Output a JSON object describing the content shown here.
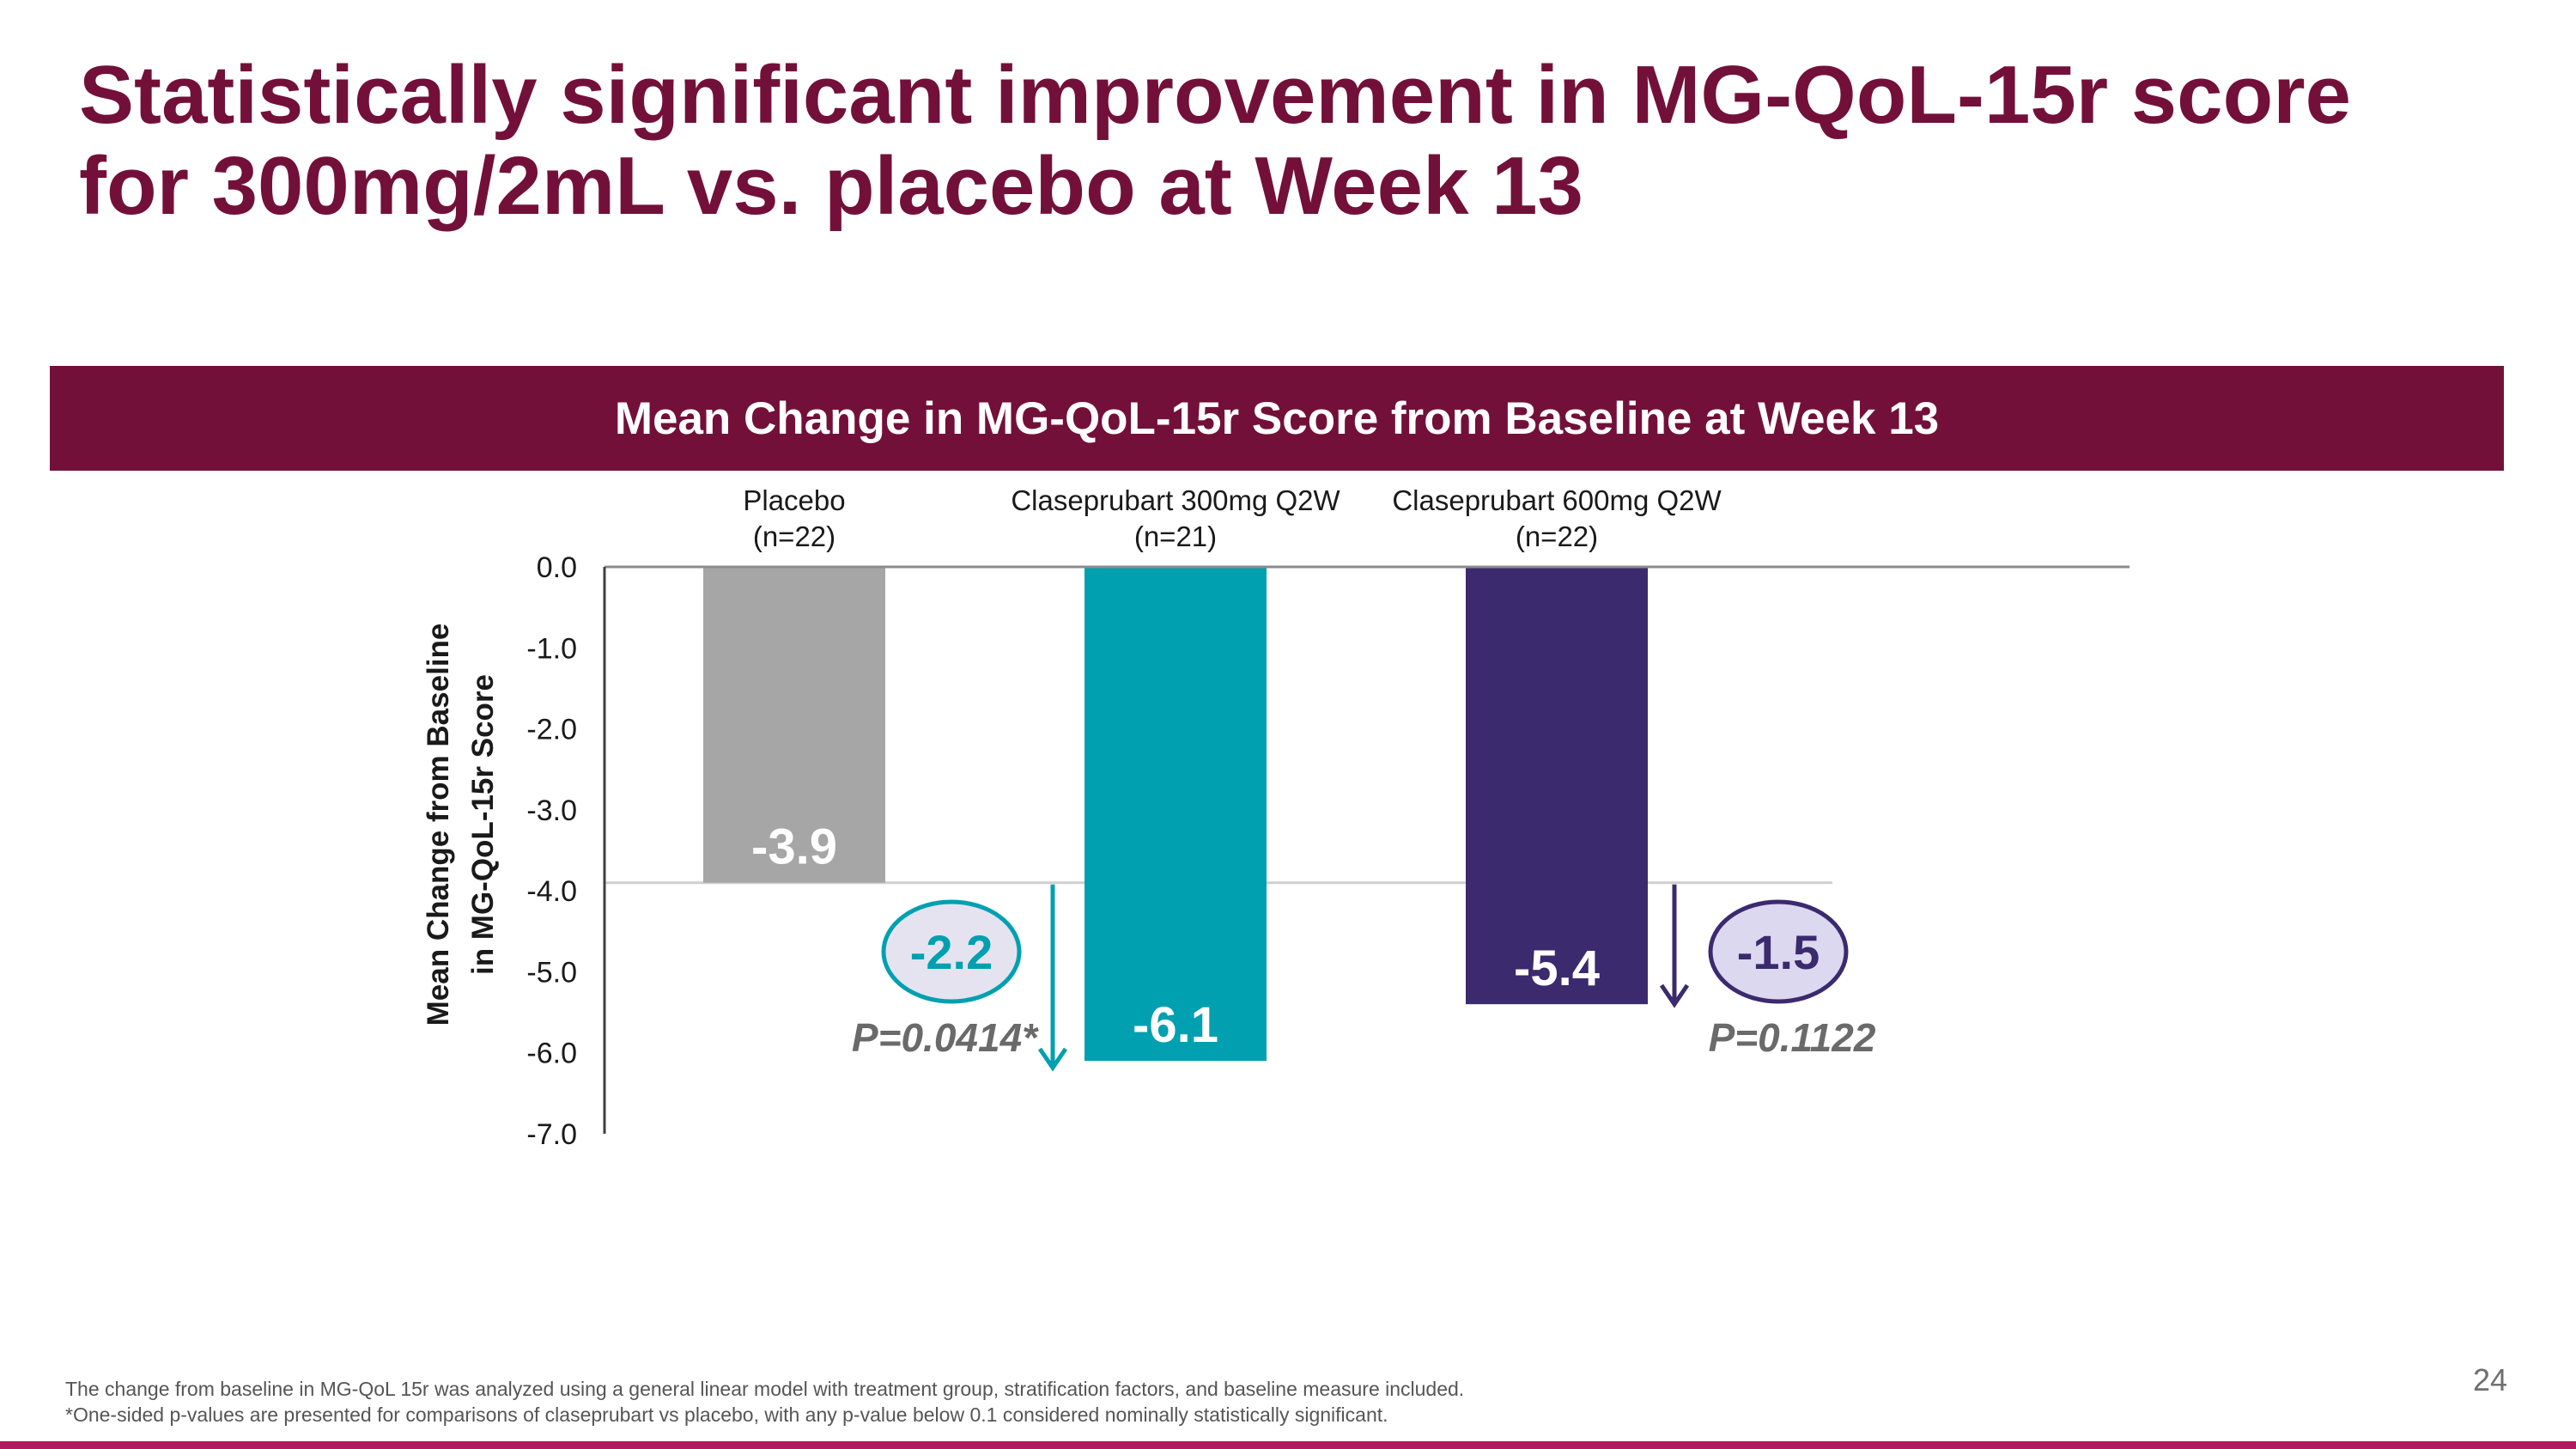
{
  "slide": {
    "title_lines": [
      "Statistically significant improvement in MG-QoL-15r score",
      "for 300mg/2mL vs. placebo at Week 13"
    ],
    "banner": "Mean Change in MG-QoL-15r Score from Baseline at Week 13",
    "footnotes": [
      "The change from baseline in MG-QoL 15r was analyzed using a general linear model with treatment group, stratification factors, and baseline measure included.",
      "*One-sided p-values are presented for comparisons of claseprubart vs placebo, with any p-value below 0.1 considered nominally statistically significant."
    ],
    "page_number": "24"
  },
  "chart_data": {
    "type": "bar",
    "title": "Mean Change in MG-QoL-15r Score from Baseline at Week 13",
    "ylabel_lines": [
      "Mean Change from Baseline",
      "in MG-QoL-15r Score"
    ],
    "ylim": [
      -7.0,
      0.0
    ],
    "yticks": [
      "0.0",
      "-1.0",
      "-2.0",
      "-3.0",
      "-4.0",
      "-5.0",
      "-6.0",
      "-7.0"
    ],
    "ytick_values": [
      0,
      -1,
      -2,
      -3,
      -4,
      -5,
      -6,
      -7
    ],
    "categories": [
      {
        "name": "Placebo",
        "n": "(n=22)"
      },
      {
        "name": "Claseprubart 300mg Q2W",
        "n": "(n=21)"
      },
      {
        "name": "Claseprubart 600mg Q2W",
        "n": "(n=22)"
      }
    ],
    "values": [
      -3.9,
      -6.1,
      -5.4
    ],
    "value_labels": [
      "-3.9",
      "-6.1",
      "-5.4"
    ],
    "colors": [
      "#a6a6a6",
      "#00a0b0",
      "#3b2a6e"
    ],
    "reference_line": -3.9,
    "comparisons": [
      {
        "target": 1,
        "difference": "-2.2",
        "p_value": "P=0.0414*",
        "color": "#00a0b0",
        "fill": "#e6e3f0"
      },
      {
        "target": 2,
        "difference": "-1.5",
        "p_value": "P=0.1122",
        "color": "#3b2a6e",
        "fill": "#dcd8f0"
      }
    ]
  }
}
